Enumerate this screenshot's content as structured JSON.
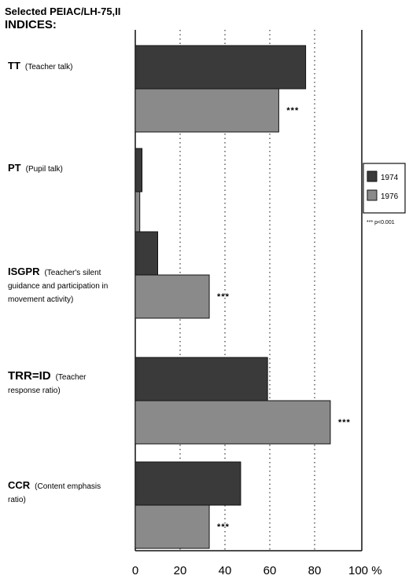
{
  "chart_data": {
    "type": "bar",
    "orientation": "horizontal",
    "title_lines": [
      "Selected PEIAC/LH-75,II",
      "INDICES:"
    ],
    "categories": [
      {
        "abbr": "TT",
        "desc_lines": [
          "(Teacher talk)"
        ]
      },
      {
        "abbr": "PT",
        "desc_lines": [
          "(Pupil talk)"
        ]
      },
      {
        "abbr": "ISGPR",
        "desc_lines": [
          "(Teacher's silent",
          "guidance and participation in",
          "movement activity)"
        ]
      },
      {
        "abbr": "TRR=ID",
        "desc_lines": [
          "(Teacher",
          "response ratio)"
        ]
      },
      {
        "abbr": "CCR",
        "desc_lines": [
          "(Content emphasis",
          "ratio)"
        ]
      }
    ],
    "series": [
      {
        "name": "1974",
        "color": "#3a3a3a",
        "values": [
          76,
          3,
          10,
          59,
          47
        ]
      },
      {
        "name": "1976",
        "color": "#8a8a8a",
        "values": [
          64,
          2,
          33,
          87,
          33
        ]
      }
    ],
    "significance": [
      "***",
      "",
      "***",
      "***",
      "***"
    ],
    "significance_note": "*** p<0.001",
    "xlim": [
      0,
      100
    ],
    "x_ticks": [
      "0",
      "20",
      "40",
      "60",
      "80",
      "100 %"
    ],
    "gridlines": [
      20,
      40,
      60,
      80
    ],
    "legend_position": "right"
  }
}
